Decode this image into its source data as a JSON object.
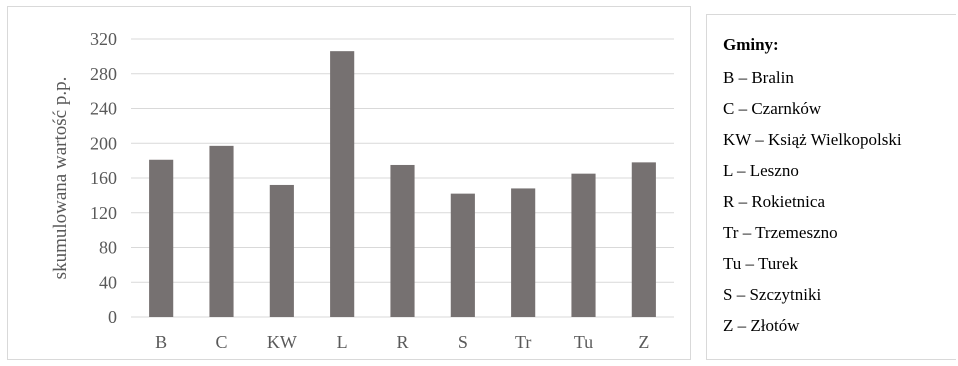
{
  "chart_data": {
    "type": "bar",
    "categories": [
      "B",
      "C",
      "KW",
      "L",
      "R",
      "S",
      "Tr",
      "Tu",
      "Z"
    ],
    "values": [
      181,
      197,
      152,
      306,
      175,
      142,
      148,
      165,
      178
    ],
    "title": "",
    "xlabel": "",
    "ylabel": "skumulowana wartość p.p.",
    "ylim": [
      0,
      320
    ],
    "yticks": [
      "0",
      "40",
      "80",
      "120",
      "160",
      "200",
      "240",
      "280",
      "320"
    ],
    "grid": true,
    "bar_color": "#767171"
  },
  "legend": {
    "title": "Gminy:",
    "items": [
      "B – Bralin",
      "C – Czarnków",
      "KW – Książ Wielkopolski",
      "L – Leszno",
      "R – Rokietnica",
      "Tr – Trzemeszno",
      "Tu – Turek",
      "S – Szczytniki",
      "Z – Złotów"
    ]
  }
}
